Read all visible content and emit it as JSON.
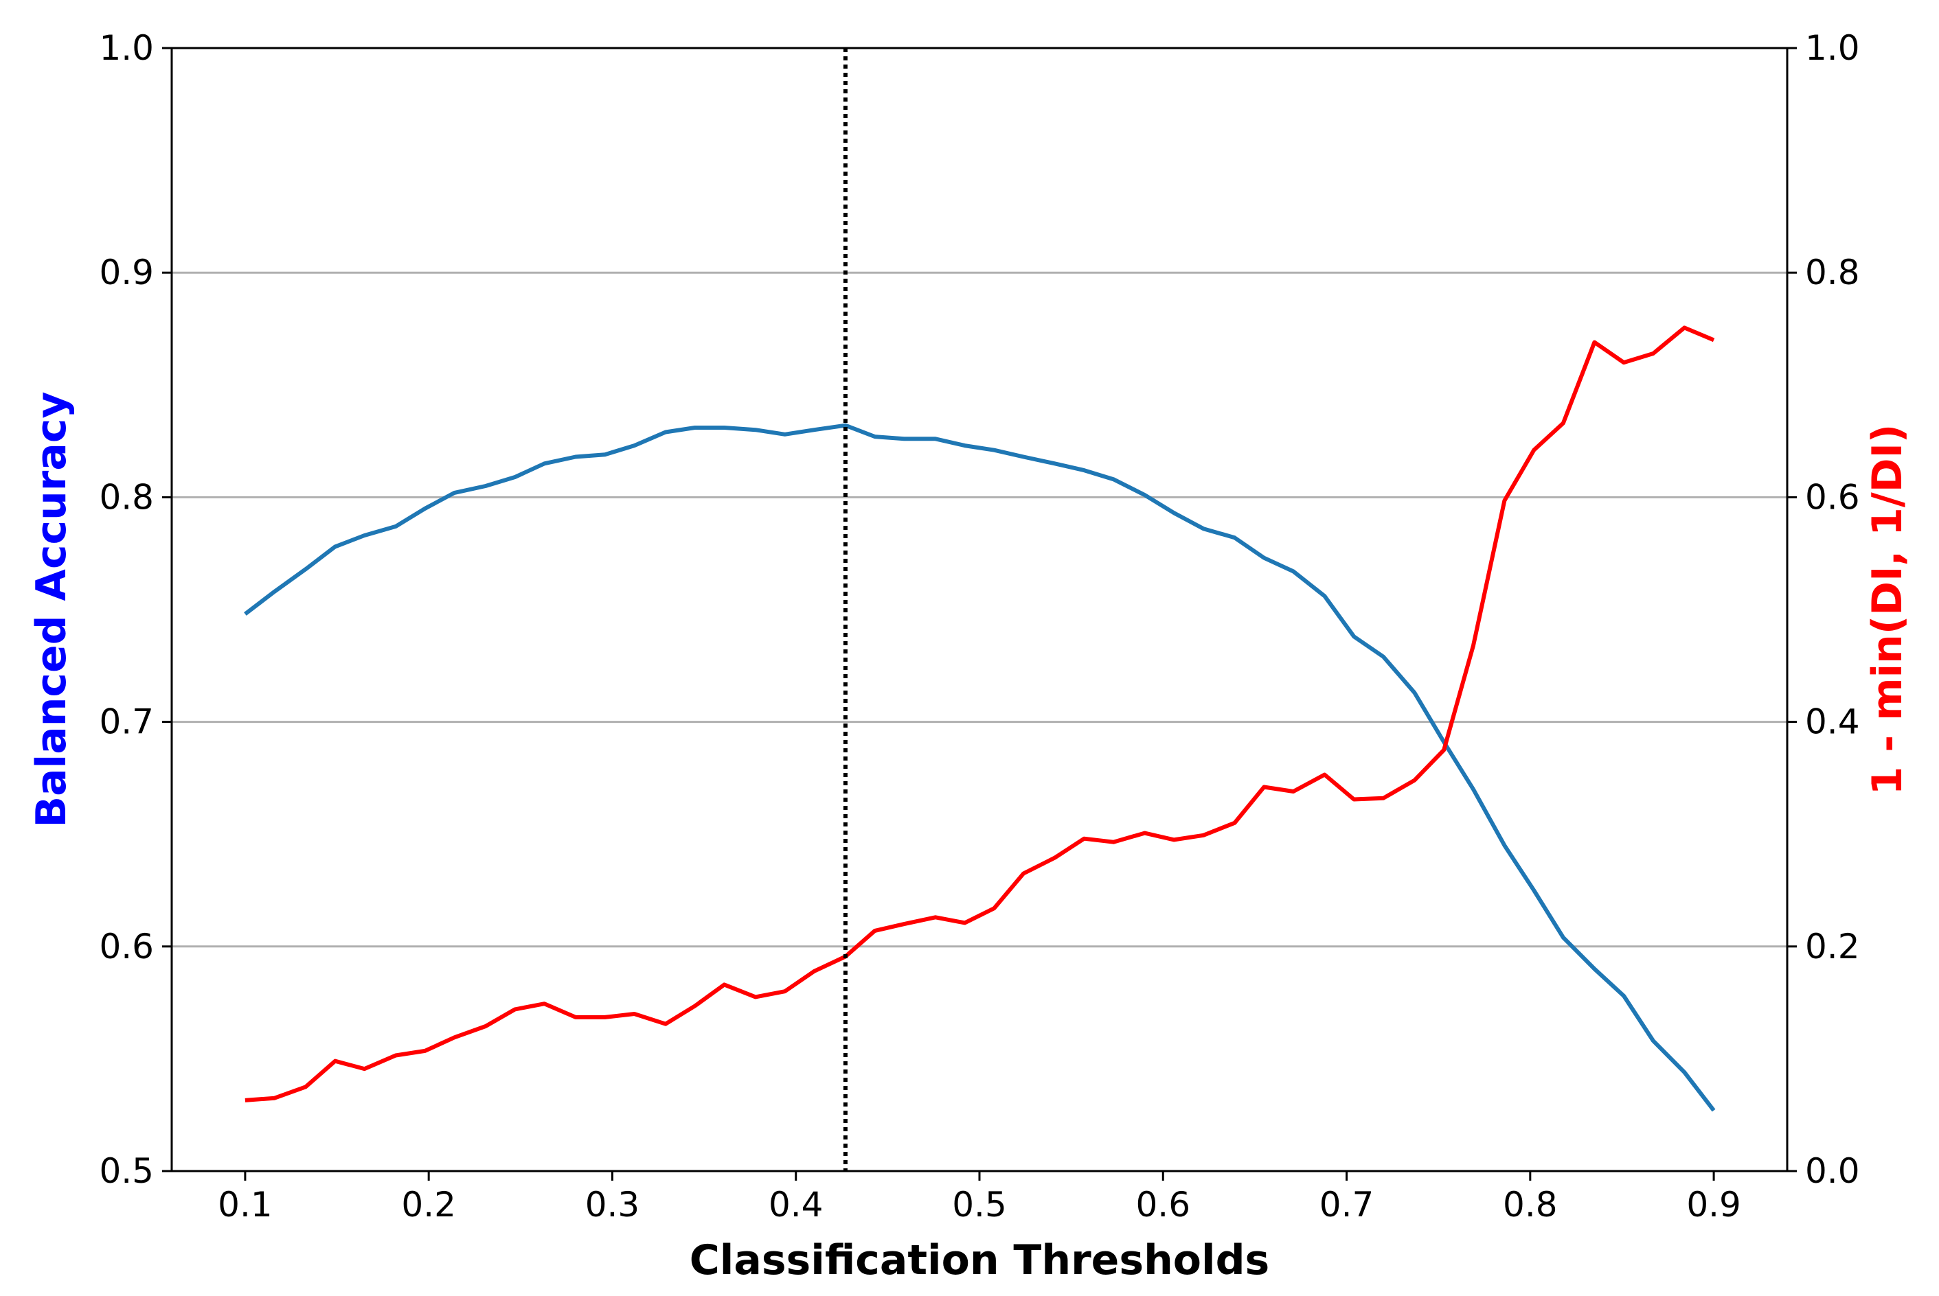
{
  "chart_data": {
    "type": "line",
    "xlabel": "Classification Thresholds",
    "ylabel_left": "Balanced Accuracy",
    "ylabel_right": "1 - min(DI, 1/DI)",
    "ylabel_left_color": "#0000ff",
    "ylabel_right_color": "#ff0000",
    "xlim": [
      0.06,
      0.94
    ],
    "ylim_left": [
      0.5,
      1.0
    ],
    "ylim_right": [
      0.0,
      1.0
    ],
    "x_ticks": [
      0.1,
      0.2,
      0.3,
      0.4,
      0.5,
      0.6,
      0.7,
      0.8,
      0.9
    ],
    "x_tick_labels": [
      "0.1",
      "0.2",
      "0.3",
      "0.4",
      "0.5",
      "0.6",
      "0.7",
      "0.8",
      "0.9"
    ],
    "y_left_ticks": [
      0.5,
      0.6,
      0.7,
      0.8,
      0.9,
      1.0
    ],
    "y_left_tick_labels": [
      "0.5",
      "0.6",
      "0.7",
      "0.8",
      "0.9",
      "1.0"
    ],
    "y_right_ticks": [
      0.0,
      0.2,
      0.4,
      0.6,
      0.8,
      1.0
    ],
    "y_right_tick_labels": [
      "0.0",
      "0.2",
      "0.4",
      "0.6",
      "0.8",
      "1.0"
    ],
    "grid": "horizontal",
    "vline": {
      "x": 0.427,
      "style": "dotted",
      "color": "#000000"
    },
    "x": [
      0.1,
      0.116,
      0.133,
      0.149,
      0.165,
      0.182,
      0.198,
      0.214,
      0.231,
      0.247,
      0.263,
      0.28,
      0.296,
      0.312,
      0.329,
      0.345,
      0.361,
      0.378,
      0.394,
      0.41,
      0.427,
      0.443,
      0.459,
      0.476,
      0.492,
      0.508,
      0.524,
      0.541,
      0.557,
      0.573,
      0.59,
      0.606,
      0.622,
      0.639,
      0.655,
      0.671,
      0.688,
      0.704,
      0.72,
      0.737,
      0.753,
      0.769,
      0.786,
      0.802,
      0.818,
      0.835,
      0.851,
      0.867,
      0.884,
      0.9
    ],
    "series": [
      {
        "axis": "left",
        "color": "#1f77b4",
        "values": [
          0.748,
          0.758,
          0.768,
          0.778,
          0.783,
          0.787,
          0.795,
          0.802,
          0.805,
          0.809,
          0.815,
          0.818,
          0.819,
          0.823,
          0.829,
          0.831,
          0.831,
          0.83,
          0.828,
          0.83,
          0.832,
          0.827,
          0.826,
          0.826,
          0.823,
          0.821,
          0.818,
          0.815,
          0.812,
          0.808,
          0.801,
          0.793,
          0.786,
          0.782,
          0.773,
          0.767,
          0.756,
          0.738,
          0.729,
          0.713,
          0.691,
          0.67,
          0.645,
          0.625,
          0.604,
          0.59,
          0.578,
          0.558,
          0.544,
          0.527
        ]
      },
      {
        "axis": "right",
        "color": "#ff0000",
        "values": [
          0.063,
          0.065,
          0.075,
          0.098,
          0.091,
          0.103,
          0.107,
          0.119,
          0.129,
          0.144,
          0.149,
          0.137,
          0.137,
          0.14,
          0.131,
          0.147,
          0.166,
          0.155,
          0.16,
          0.178,
          0.191,
          0.214,
          0.22,
          0.226,
          0.221,
          0.234,
          0.265,
          0.279,
          0.296,
          0.293,
          0.301,
          0.295,
          0.299,
          0.31,
          0.342,
          0.338,
          0.353,
          0.331,
          0.332,
          0.348,
          0.375,
          0.468,
          0.597,
          0.642,
          0.666,
          0.738,
          0.72,
          0.728,
          0.751,
          0.74
        ]
      }
    ]
  }
}
